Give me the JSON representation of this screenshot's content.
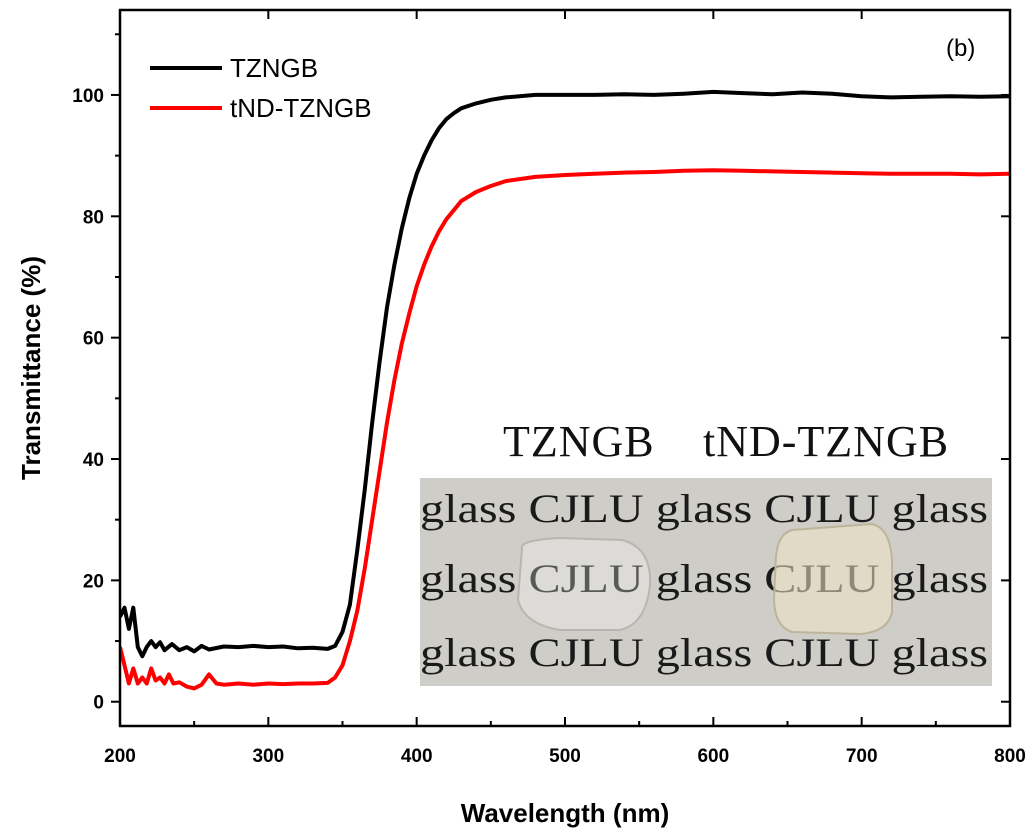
{
  "chart_data": {
    "type": "line",
    "title": "",
    "panel_label": "(b)",
    "xlabel": "Wavelength (nm)",
    "ylabel": "Transmittance (%)",
    "xlim": [
      200,
      800
    ],
    "ylim": [
      -4,
      114
    ],
    "x_ticks": [
      200,
      300,
      400,
      500,
      600,
      700,
      800
    ],
    "x_tick_labels": [
      "200",
      "300",
      "400",
      "500",
      "600",
      "700",
      "800"
    ],
    "y_ticks": [
      0,
      20,
      40,
      60,
      80,
      100
    ],
    "y_tick_labels": [
      "0",
      "20",
      "40",
      "60",
      "80",
      "100"
    ],
    "grid": false,
    "legend_position": "top-left",
    "series": [
      {
        "name": "TZNGB",
        "color": "#000000",
        "points": [
          [
            200,
            14
          ],
          [
            203,
            15.5
          ],
          [
            206,
            12
          ],
          [
            209,
            15.5
          ],
          [
            212,
            9
          ],
          [
            215,
            7.5
          ],
          [
            218,
            9
          ],
          [
            221,
            10
          ],
          [
            224,
            9
          ],
          [
            227,
            9.8
          ],
          [
            230,
            8.5
          ],
          [
            235,
            9.5
          ],
          [
            240,
            8.5
          ],
          [
            245,
            9
          ],
          [
            250,
            8.3
          ],
          [
            255,
            9.2
          ],
          [
            260,
            8.6
          ],
          [
            270,
            9.1
          ],
          [
            280,
            9
          ],
          [
            290,
            9.2
          ],
          [
            300,
            9
          ],
          [
            310,
            9.1
          ],
          [
            320,
            8.8
          ],
          [
            330,
            8.9
          ],
          [
            340,
            8.7
          ],
          [
            345,
            9.2
          ],
          [
            350,
            11.5
          ],
          [
            355,
            16
          ],
          [
            360,
            25
          ],
          [
            365,
            35
          ],
          [
            370,
            46
          ],
          [
            375,
            56
          ],
          [
            380,
            65
          ],
          [
            385,
            72
          ],
          [
            390,
            78
          ],
          [
            395,
            83
          ],
          [
            400,
            87
          ],
          [
            405,
            90
          ],
          [
            410,
            92.5
          ],
          [
            415,
            94.5
          ],
          [
            420,
            96
          ],
          [
            425,
            97
          ],
          [
            430,
            97.8
          ],
          [
            440,
            98.6
          ],
          [
            450,
            99.2
          ],
          [
            460,
            99.6
          ],
          [
            480,
            100
          ],
          [
            500,
            100
          ],
          [
            520,
            100
          ],
          [
            540,
            100.1
          ],
          [
            560,
            100
          ],
          [
            580,
            100.2
          ],
          [
            600,
            100.5
          ],
          [
            620,
            100.3
          ],
          [
            640,
            100.1
          ],
          [
            660,
            100.4
          ],
          [
            680,
            100.2
          ],
          [
            700,
            99.8
          ],
          [
            720,
            99.6
          ],
          [
            740,
            99.7
          ],
          [
            760,
            99.8
          ],
          [
            780,
            99.7
          ],
          [
            800,
            99.8
          ]
        ]
      },
      {
        "name": "tND-TZNGB",
        "color": "#ff0000",
        "points": [
          [
            200,
            9
          ],
          [
            203,
            6
          ],
          [
            206,
            3
          ],
          [
            209,
            5.5
          ],
          [
            212,
            3
          ],
          [
            215,
            4
          ],
          [
            218,
            3
          ],
          [
            221,
            5.5
          ],
          [
            224,
            3.5
          ],
          [
            227,
            4
          ],
          [
            230,
            3
          ],
          [
            233,
            4.5
          ],
          [
            236,
            3
          ],
          [
            240,
            3.2
          ],
          [
            245,
            2.5
          ],
          [
            250,
            2.2
          ],
          [
            255,
            2.8
          ],
          [
            260,
            4.5
          ],
          [
            265,
            3
          ],
          [
            270,
            2.8
          ],
          [
            280,
            3
          ],
          [
            290,
            2.8
          ],
          [
            300,
            3
          ],
          [
            310,
            2.9
          ],
          [
            320,
            3
          ],
          [
            330,
            3
          ],
          [
            340,
            3.1
          ],
          [
            345,
            4
          ],
          [
            350,
            6
          ],
          [
            355,
            10
          ],
          [
            360,
            15
          ],
          [
            365,
            22
          ],
          [
            370,
            30
          ],
          [
            375,
            38
          ],
          [
            380,
            46
          ],
          [
            385,
            53
          ],
          [
            390,
            59
          ],
          [
            395,
            64
          ],
          [
            400,
            68.5
          ],
          [
            405,
            72
          ],
          [
            410,
            75
          ],
          [
            415,
            77.5
          ],
          [
            420,
            79.5
          ],
          [
            425,
            81
          ],
          [
            430,
            82.5
          ],
          [
            440,
            84
          ],
          [
            450,
            85
          ],
          [
            460,
            85.8
          ],
          [
            480,
            86.5
          ],
          [
            500,
            86.8
          ],
          [
            520,
            87
          ],
          [
            540,
            87.2
          ],
          [
            560,
            87.3
          ],
          [
            580,
            87.5
          ],
          [
            600,
            87.6
          ],
          [
            620,
            87.5
          ],
          [
            640,
            87.4
          ],
          [
            660,
            87.3
          ],
          [
            680,
            87.2
          ],
          [
            700,
            87.1
          ],
          [
            720,
            87
          ],
          [
            740,
            87
          ],
          [
            760,
            87
          ],
          [
            780,
            86.9
          ],
          [
            800,
            87
          ]
        ]
      }
    ],
    "inset_photo": {
      "sample_labels": [
        "TZNGB",
        "tND-TZNGB"
      ],
      "text_rows": [
        "glass CJLU glass CJLU glass",
        "glass CJLU glass CJLU glass",
        "glass CJLU glass CJLU glass"
      ]
    }
  }
}
